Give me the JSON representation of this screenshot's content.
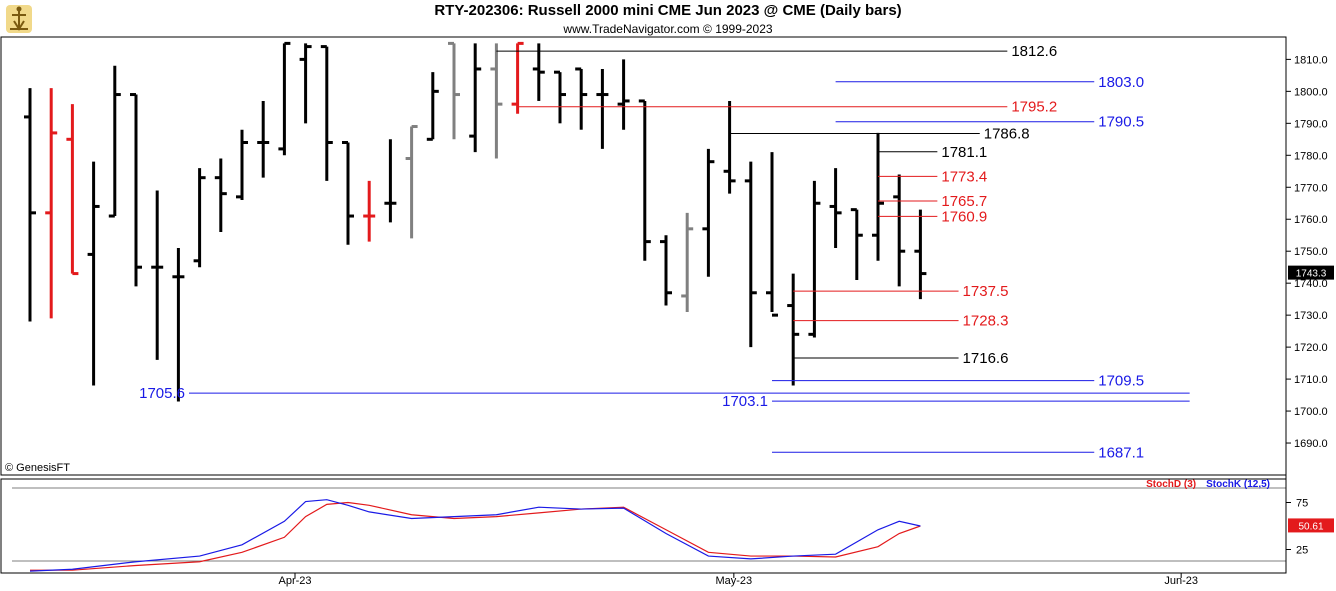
{
  "header": {
    "title": "RTY-202306:  Russell 2000 mini CME Jun 2023 @ CME  (Daily bars)",
    "subtitle": "www.TradeNavigator.com © 1999-2023",
    "copyright": "© GenesisFT"
  },
  "colors": {
    "up_bar": "#000000",
    "down_bar": "#e31a1c",
    "neutral_bar": "#808080",
    "support": "#1a1ae6",
    "resistance": "#e31a1c",
    "level": "#000000",
    "stoch_d": "#e31a1c",
    "stoch_k": "#1a1ae6"
  },
  "chart_data": [
    {
      "type": "ohlc",
      "title": "RTY-202306:  Russell 2000 mini CME Jun 2023 @ CME  (Daily bars)",
      "ylim": [
        1680,
        1817
      ],
      "y_ticks": [
        "1690.0",
        "1700.0",
        "1710.0",
        "1720.0",
        "1730.0",
        "1740.0",
        "1750.0",
        "1760.0",
        "1770.0",
        "1780.0",
        "1790.0",
        "1800.0",
        "1810.0"
      ],
      "x_ticks": [
        {
          "label": "Apr-23",
          "bar": 12.5
        },
        {
          "label": "May-23",
          "bar": 33.2
        },
        {
          "label": "Jun-23",
          "bar": 54.3
        }
      ],
      "last_price": "1743.3",
      "bars": [
        {
          "o": 1792,
          "h": 1801,
          "l": 1728,
          "c": 1762,
          "color": "black"
        },
        {
          "o": 1762,
          "h": 1801,
          "l": 1729,
          "c": 1787,
          "color": "red"
        },
        {
          "o": 1785,
          "h": 1796,
          "l": 1743,
          "c": 1743,
          "color": "red"
        },
        {
          "o": 1749,
          "h": 1778,
          "l": 1708,
          "c": 1764,
          "color": "black"
        },
        {
          "o": 1761,
          "h": 1808,
          "l": 1761,
          "c": 1799,
          "color": "black"
        },
        {
          "o": 1799,
          "h": 1799,
          "l": 1739,
          "c": 1745,
          "color": "black"
        },
        {
          "o": 1745,
          "h": 1769,
          "l": 1716,
          "c": 1745,
          "color": "black"
        },
        {
          "o": 1742,
          "h": 1751,
          "l": 1703,
          "c": 1742,
          "color": "black"
        },
        {
          "o": 1747,
          "h": 1776,
          "l": 1745,
          "c": 1773,
          "color": "black"
        },
        {
          "o": 1773,
          "h": 1779,
          "l": 1756,
          "c": 1768,
          "color": "black"
        },
        {
          "o": 1767,
          "h": 1788,
          "l": 1766,
          "c": 1784,
          "color": "black"
        },
        {
          "o": 1784,
          "h": 1797,
          "l": 1773,
          "c": 1784,
          "color": "black"
        },
        {
          "o": 1782,
          "h": 1815,
          "l": 1780,
          "c": 1815,
          "color": "black"
        },
        {
          "o": 1810,
          "h": 1815,
          "l": 1790,
          "c": 1814,
          "color": "black"
        },
        {
          "o": 1814,
          "h": 1814,
          "l": 1772,
          "c": 1784,
          "color": "black"
        },
        {
          "o": 1784,
          "h": 1784,
          "l": 1752,
          "c": 1761,
          "color": "black"
        },
        {
          "o": 1761,
          "h": 1772,
          "l": 1753,
          "c": 1761,
          "color": "red"
        },
        {
          "o": 1765,
          "h": 1785,
          "l": 1759,
          "c": 1765,
          "color": "black"
        },
        {
          "o": 1779,
          "h": 1789,
          "l": 1754,
          "c": 1789,
          "color": "gray"
        },
        {
          "o": 1785,
          "h": 1806,
          "l": 1785,
          "c": 1800,
          "color": "black"
        },
        {
          "o": 1815,
          "h": 1815,
          "l": 1785,
          "c": 1799,
          "color": "gray"
        },
        {
          "o": 1786,
          "h": 1815,
          "l": 1781,
          "c": 1807,
          "color": "black"
        },
        {
          "o": 1807,
          "h": 1815,
          "l": 1779,
          "c": 1796,
          "color": "gray"
        },
        {
          "o": 1796,
          "h": 1815,
          "l": 1793,
          "c": 1815,
          "color": "red"
        },
        {
          "o": 1807,
          "h": 1815,
          "l": 1797,
          "c": 1806,
          "color": "black"
        },
        {
          "o": 1806,
          "h": 1806,
          "l": 1790,
          "c": 1799,
          "color": "black"
        },
        {
          "o": 1807,
          "h": 1807,
          "l": 1788,
          "c": 1799,
          "color": "black"
        },
        {
          "o": 1799,
          "h": 1807,
          "l": 1782,
          "c": 1799,
          "color": "black"
        },
        {
          "o": 1796,
          "h": 1810,
          "l": 1788,
          "c": 1797,
          "color": "black"
        },
        {
          "o": 1797,
          "h": 1797,
          "l": 1747,
          "c": 1753,
          "color": "black"
        },
        {
          "o": 1753,
          "h": 1755,
          "l": 1733,
          "c": 1737,
          "color": "black"
        },
        {
          "o": 1736,
          "h": 1762,
          "l": 1731,
          "c": 1757,
          "color": "gray"
        },
        {
          "o": 1757,
          "h": 1782,
          "l": 1742,
          "c": 1778,
          "color": "black"
        },
        {
          "o": 1775,
          "h": 1797,
          "l": 1768,
          "c": 1772,
          "color": "black"
        },
        {
          "o": 1772,
          "h": 1778,
          "l": 1720,
          "c": 1737,
          "color": "black"
        },
        {
          "o": 1737,
          "h": 1781,
          "l": 1731,
          "c": 1730,
          "color": "black"
        },
        {
          "o": 1733,
          "h": 1743,
          "l": 1708,
          "c": 1724,
          "color": "black"
        },
        {
          "o": 1724,
          "h": 1772,
          "l": 1723,
          "c": 1765,
          "color": "black"
        },
        {
          "o": 1764,
          "h": 1776,
          "l": 1751,
          "c": 1762,
          "color": "black"
        },
        {
          "o": 1763,
          "h": 1763,
          "l": 1741,
          "c": 1755,
          "color": "black"
        },
        {
          "o": 1755,
          "h": 1787,
          "l": 1747,
          "c": 1765,
          "color": "black"
        },
        {
          "o": 1767,
          "h": 1774,
          "l": 1739,
          "c": 1750,
          "color": "black"
        },
        {
          "o": 1750,
          "h": 1763,
          "l": 1735,
          "c": 1743,
          "color": "black"
        }
      ],
      "levels": [
        {
          "value": 1812.6,
          "label": "1812.6",
          "color": "black",
          "from_bar": 22,
          "to_bar": 46.1,
          "label_side": "right"
        },
        {
          "value": 1803.0,
          "label": "1803.0",
          "color": "blue",
          "from_bar": 38,
          "to_bar": 50.2,
          "label_side": "right"
        },
        {
          "value": 1795.2,
          "label": "1795.2",
          "color": "red",
          "from_bar": 23,
          "to_bar": 46.1,
          "label_side": "right"
        },
        {
          "value": 1790.5,
          "label": "1790.5",
          "color": "blue",
          "from_bar": 38,
          "to_bar": 50.2,
          "label_side": "right"
        },
        {
          "value": 1786.8,
          "label": "1786.8",
          "color": "black",
          "from_bar": 33,
          "to_bar": 44.8,
          "label_side": "right"
        },
        {
          "value": 1781.1,
          "label": "1781.1",
          "color": "black",
          "from_bar": 40,
          "to_bar": 42.8,
          "label_side": "right"
        },
        {
          "value": 1773.4,
          "label": "1773.4",
          "color": "red",
          "from_bar": 40,
          "to_bar": 42.8,
          "label_side": "right"
        },
        {
          "value": 1765.7,
          "label": "1765.7",
          "color": "red",
          "from_bar": 40,
          "to_bar": 42.8,
          "label_side": "right"
        },
        {
          "value": 1760.9,
          "label": "1760.9",
          "color": "red",
          "from_bar": 40,
          "to_bar": 42.8,
          "label_side": "right"
        },
        {
          "value": 1737.5,
          "label": "1737.5",
          "color": "red",
          "from_bar": 36,
          "to_bar": 43.8,
          "label_side": "right"
        },
        {
          "value": 1728.3,
          "label": "1728.3",
          "color": "red",
          "from_bar": 36,
          "to_bar": 43.8,
          "label_side": "right"
        },
        {
          "value": 1716.6,
          "label": "1716.6",
          "color": "black",
          "from_bar": 36,
          "to_bar": 43.8,
          "label_side": "right"
        },
        {
          "value": 1709.5,
          "label": "1709.5",
          "color": "blue",
          "from_bar": 35,
          "to_bar": 50.2,
          "label_side": "right"
        },
        {
          "value": 1705.6,
          "label": "1705.6",
          "color": "blue",
          "from_bar": 7.5,
          "to_bar": 54.7,
          "label_side": "left"
        },
        {
          "value": 1703.1,
          "label": "1703.1",
          "color": "blue",
          "from_bar": 35,
          "to_bar": 54.7,
          "label_side": "left"
        },
        {
          "value": 1687.1,
          "label": "1687.1",
          "color": "blue",
          "from_bar": 35,
          "to_bar": 50.2,
          "label_side": "right"
        }
      ]
    },
    {
      "type": "line",
      "title": "",
      "ylim": [
        0,
        100
      ],
      "y_ticks": [
        "75",
        "25"
      ],
      "last_value": "50.61",
      "series": [
        {
          "name": "StochD (3)",
          "color": "red",
          "x": [
            0,
            2,
            5,
            8,
            10,
            12,
            13,
            14,
            15,
            16,
            18,
            20,
            22,
            24,
            26,
            28,
            30,
            32,
            34,
            36,
            38,
            40,
            41,
            42
          ],
          "values": [
            3,
            3,
            8,
            12,
            22,
            38,
            60,
            73,
            75,
            72,
            62,
            58,
            60,
            64,
            68,
            70,
            46,
            22,
            18,
            18,
            17,
            28,
            42,
            50
          ]
        },
        {
          "name": "StochK (12,5)",
          "color": "blue",
          "x": [
            0,
            2,
            5,
            8,
            10,
            12,
            13,
            14,
            15,
            16,
            18,
            20,
            22,
            24,
            26,
            28,
            30,
            32,
            34,
            36,
            38,
            40,
            41,
            42
          ],
          "values": [
            2,
            4,
            12,
            18,
            30,
            55,
            76,
            78,
            72,
            65,
            58,
            60,
            62,
            70,
            68,
            69,
            42,
            18,
            15,
            18,
            20,
            46,
            55,
            50
          ]
        }
      ]
    }
  ]
}
